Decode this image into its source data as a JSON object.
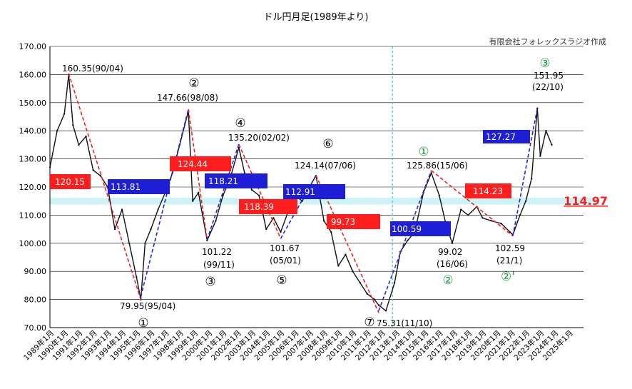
{
  "chart_data": {
    "type": "line",
    "title": "ドル円月足(1989年より)",
    "credit": "有限会社フォレックスラジオ作成",
    "ylim": [
      70,
      170
    ],
    "yticks": [
      "70.00",
      "80.00",
      "90.00",
      "100.00",
      "110.00",
      "120.00",
      "130.00",
      "140.00",
      "150.00",
      "160.00",
      "170.00"
    ],
    "xlabels": [
      "1989年1月",
      "1990年1月",
      "1991年1月",
      "1992年1月",
      "1993年1月",
      "1994年1月",
      "1995年1月",
      "1996年1月",
      "1997年1月",
      "1998年1月",
      "1999年1月",
      "2000年1月",
      "2001年1月",
      "2002年1月",
      "2003年1月",
      "2004年1月",
      "2005年1月",
      "2006年1月",
      "2007年1月",
      "2008年1月",
      "2009年1月",
      "2010年1月",
      "2011年1月",
      "2012年1月",
      "2013年1月",
      "2014年1月",
      "2015年1月",
      "2016年1月",
      "2017年1月",
      "2018年1月",
      "2019年1月",
      "2020年1月",
      "2021年1月",
      "2022年1月",
      "2023年1月",
      "2024年1月",
      "2025年1月"
    ],
    "x": [
      1989.0,
      1989.5,
      1990.0,
      1990.3,
      1990.6,
      1991.0,
      1991.5,
      1992.0,
      1992.5,
      1993.0,
      1993.5,
      1994.0,
      1994.5,
      1995.0,
      1995.3,
      1995.6,
      1996.0,
      1996.5,
      1997.0,
      1997.5,
      1998.0,
      1998.6,
      1998.9,
      1999.3,
      1999.9,
      2000.5,
      2001.0,
      2001.5,
      2002.1,
      2002.5,
      2003.0,
      2003.5,
      2004.0,
      2004.5,
      2005.0,
      2005.5,
      2006.0,
      2006.5,
      2007.0,
      2007.45,
      2008.0,
      2008.5,
      2009.0,
      2009.5,
      2010.0,
      2010.5,
      2011.0,
      2011.5,
      2011.8,
      2012.3,
      2012.9,
      2013.3,
      2013.8,
      2014.3,
      2014.9,
      2015.45,
      2016.0,
      2016.45,
      2016.9,
      2017.5,
      2018.0,
      2018.6,
      2019.0,
      2019.6,
      2020.3,
      2020.9,
      2021.1,
      2021.6,
      2022.0,
      2022.4,
      2022.8,
      2023.0,
      2023.4,
      2023.8
    ],
    "y": [
      127,
      140,
      146,
      160,
      142,
      135,
      138,
      126,
      124,
      120,
      105,
      112,
      100,
      88,
      80,
      100,
      105,
      112,
      118,
      125,
      135,
      147,
      115,
      118,
      101,
      108,
      117,
      123,
      134,
      125,
      119,
      117,
      105,
      109,
      104,
      111,
      117,
      115,
      120,
      124,
      108,
      104,
      92,
      96,
      90,
      86,
      82,
      80,
      78,
      76,
      86,
      97,
      101,
      104,
      118,
      125,
      117,
      107,
      100,
      112,
      110,
      113,
      109,
      108,
      107,
      104,
      103,
      110,
      115,
      123,
      148,
      131,
      140,
      135
    ],
    "support_band": {
      "low": 113.8,
      "high": 116.2,
      "label": "114.97"
    },
    "labels": {
      "a1": "160.35(90/04)",
      "a2": "147.66(98/08)",
      "a3": "135.20(02/02)",
      "a4": "124.14(07/06)",
      "a5": "125.86(15/06)",
      "a6": "151.95",
      "a7": "(22/10)",
      "b1": "79.95(95/04)",
      "b2": "101.22",
      "b3": "(99/11)",
      "b4": "101.67",
      "b5": "(05/01)",
      "b6": "75.31(11/10)",
      "b7": "99.02",
      "b8": "(16/06)",
      "b9": "102.59",
      "b10": "(21/1)"
    },
    "markers": {
      "m1": "①",
      "m2": "②",
      "m3": "③",
      "m4": "④",
      "m5": "⑤",
      "m6": "⑥",
      "m7": "⑦",
      "g1": "①",
      "g2": "②",
      "g3": "③",
      "g4": "②'"
    },
    "boxes": {
      "r1": "120.15",
      "r2": "124.44",
      "r3": "118.39",
      "r4": "99.73",
      "r5": "114.23",
      "u1": "113.81",
      "u2": "118.21",
      "u3": "112.91",
      "u4": "100.59",
      "u5": "127.27"
    }
  }
}
